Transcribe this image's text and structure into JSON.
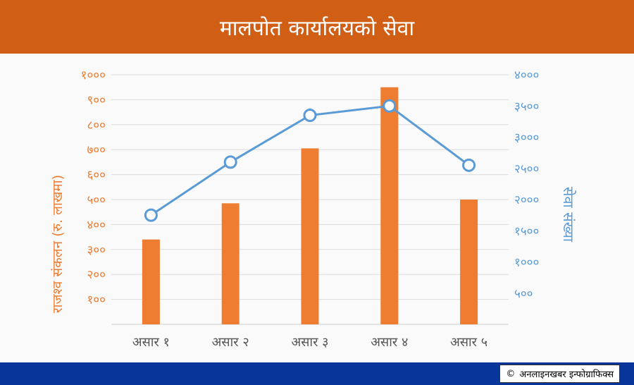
{
  "header": {
    "title": "मालपोत कार्यालयको सेवा"
  },
  "footer": {
    "copyright_symbol": "©",
    "credit": "अनलाइनखबर इन्फोग्राफिक्स"
  },
  "colors": {
    "header_bg": "#d05e15",
    "bar": "#ee7d32",
    "line": "#5b9bd5",
    "footer_bg": "#07359a"
  },
  "chart_data": {
    "type": "bar",
    "categories": [
      "असार १",
      "असार २",
      "असार ३",
      "असार ४",
      "असार ५"
    ],
    "series": [
      {
        "name": "राजश्व संकलन (रु. लाखमा)",
        "type": "bar",
        "axis": "left",
        "values": [
          340,
          485,
          705,
          950,
          500
        ]
      },
      {
        "name": "सेवा संख्या",
        "type": "line",
        "axis": "right",
        "values": [
          1750,
          2600,
          3350,
          3500,
          2550
        ]
      }
    ],
    "ylabel_left": "राजश्व संकलन (रु. लाखमा)",
    "ylabel_right": "सेवा संख्या",
    "ylim_left": [
      0,
      1000
    ],
    "ylim_right": [
      0,
      4000
    ],
    "yticks_left": [
      "१००",
      "२००",
      "३००",
      "४००",
      "५००",
      "६००",
      "७००",
      "८००",
      "९००",
      "१०००"
    ],
    "yticks_right": [
      "५००",
      "१०००",
      "१५००",
      "२०००",
      "२५००",
      "३०००",
      "३५००",
      "४०००"
    ],
    "grid": true
  }
}
